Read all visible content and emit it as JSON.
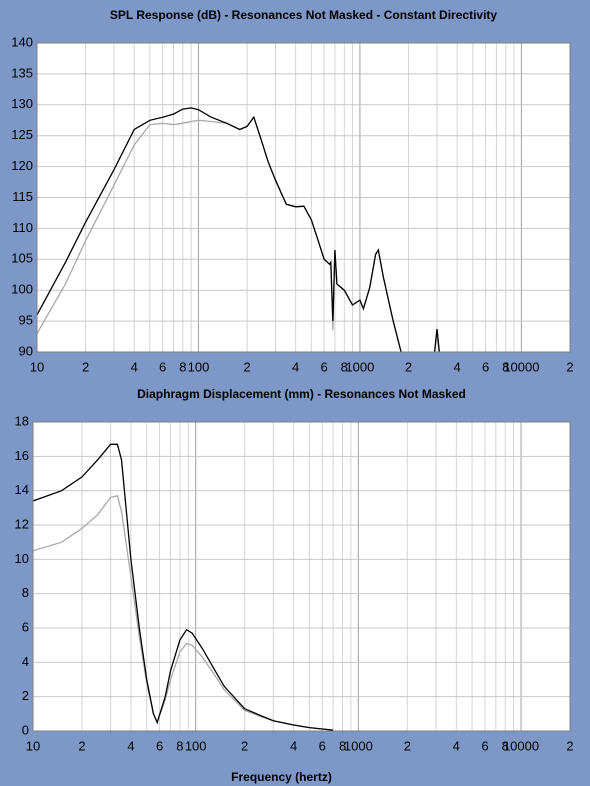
{
  "chart_data": [
    {
      "type": "line",
      "title": "SPL Response (dB) - Resonances Not Masked - Constant Directivity",
      "xscale": "log",
      "grid": true,
      "xlim": [
        10,
        20000
      ],
      "ylim": [
        90,
        140
      ],
      "xticks": [
        10,
        {
          "value": 20,
          "label": "2"
        },
        {
          "value": 30,
          "label": null
        },
        {
          "value": 40,
          "label": "4"
        },
        {
          "value": 50,
          "label": null
        },
        {
          "value": 60,
          "label": "6"
        },
        {
          "value": 70,
          "label": null
        },
        {
          "value": 80,
          "label": "8"
        },
        {
          "value": 90,
          "label": null
        },
        100,
        {
          "value": 200,
          "label": "2"
        },
        {
          "value": 300,
          "label": null
        },
        {
          "value": 400,
          "label": "4"
        },
        {
          "value": 500,
          "label": null
        },
        {
          "value": 600,
          "label": "6"
        },
        {
          "value": 700,
          "label": null
        },
        {
          "value": 800,
          "label": "8"
        },
        {
          "value": 900,
          "label": null
        },
        1000,
        {
          "value": 2000,
          "label": "2"
        },
        {
          "value": 3000,
          "label": null
        },
        {
          "value": 4000,
          "label": "4"
        },
        {
          "value": 5000,
          "label": null
        },
        {
          "value": 6000,
          "label": "6"
        },
        {
          "value": 7000,
          "label": null
        },
        {
          "value": 8000,
          "label": "8"
        },
        {
          "value": 9000,
          "label": null
        },
        10000,
        {
          "value": 20000,
          "label": "2"
        }
      ],
      "yticks": [
        90,
        95,
        100,
        105,
        110,
        115,
        120,
        125,
        130,
        135,
        140
      ],
      "x": [
        10,
        15,
        20,
        30,
        40,
        50,
        60,
        70,
        80,
        90,
        100,
        120,
        150,
        180,
        200,
        220,
        240,
        270,
        300,
        350,
        400,
        450,
        500,
        550,
        600,
        650,
        660,
        680,
        700,
        720,
        800,
        900,
        1000,
        1050,
        1150,
        1250,
        1300,
        1400,
        1600,
        1800,
        2000,
        2900,
        3000,
        3100
      ],
      "series": [
        {
          "color": "#000000",
          "values": [
            96,
            104.5,
            111,
            119.5,
            126,
            127.5,
            128,
            128.5,
            129.3,
            129.5,
            129.2,
            128,
            127,
            126,
            126.5,
            128,
            125,
            120.8,
            117.8,
            113.9,
            113.5,
            113.6,
            111.4,
            108.1,
            105,
            104.2,
            104.5,
            95,
            106.5,
            101,
            100,
            97.6,
            98.4,
            97,
            100.4,
            105.8,
            106.5,
            102,
            95.2,
            90,
            null,
            90,
            93.7,
            90
          ]
        },
        {
          "color": "#a8a8a8",
          "values": [
            93,
            101,
            108,
            117,
            123.5,
            126.8,
            127,
            126.8,
            127,
            127.3,
            127.5,
            127.3,
            127,
            126,
            126.5,
            128,
            125,
            120.8,
            117.8,
            113.9,
            113.5,
            113.6,
            111.4,
            108.1,
            105,
            104.2,
            104.5,
            93.5,
            106.5,
            101,
            100,
            97.6,
            98.4,
            97,
            100.4,
            105.8,
            106.5,
            102,
            95.2,
            90,
            null,
            90,
            93.7,
            90
          ]
        }
      ]
    },
    {
      "type": "line",
      "title": "Diaphragm Displacement (mm) - Resonances Not Masked",
      "x_label": "Frequency (hertz)",
      "xscale": "log",
      "grid": true,
      "xlim": [
        10,
        20000
      ],
      "ylim": [
        0,
        18
      ],
      "xticks": [
        10,
        {
          "value": 20,
          "label": "2"
        },
        {
          "value": 30,
          "label": null
        },
        {
          "value": 40,
          "label": "4"
        },
        {
          "value": 50,
          "label": null
        },
        {
          "value": 60,
          "label": "6"
        },
        {
          "value": 70,
          "label": null
        },
        {
          "value": 80,
          "label": "8"
        },
        {
          "value": 90,
          "label": null
        },
        100,
        {
          "value": 200,
          "label": "2"
        },
        {
          "value": 300,
          "label": null
        },
        {
          "value": 400,
          "label": "4"
        },
        {
          "value": 500,
          "label": null
        },
        {
          "value": 600,
          "label": "6"
        },
        {
          "value": 700,
          "label": null
        },
        {
          "value": 800,
          "label": "8"
        },
        {
          "value": 900,
          "label": null
        },
        1000,
        {
          "value": 2000,
          "label": "2"
        },
        {
          "value": 3000,
          "label": null
        },
        {
          "value": 4000,
          "label": "4"
        },
        {
          "value": 5000,
          "label": null
        },
        {
          "value": 6000,
          "label": "6"
        },
        {
          "value": 7000,
          "label": null
        },
        {
          "value": 8000,
          "label": "8"
        },
        {
          "value": 9000,
          "label": null
        },
        10000,
        {
          "value": 20000,
          "label": "2"
        }
      ],
      "yticks": [
        0,
        2,
        4,
        6,
        8,
        10,
        12,
        14,
        16,
        18
      ],
      "x": [
        10,
        15,
        20,
        25,
        30,
        33,
        35,
        40,
        45,
        50,
        55,
        58,
        65,
        70,
        80,
        88,
        95,
        110,
        130,
        150,
        200,
        250,
        300,
        400,
        500,
        700
      ],
      "series": [
        {
          "color": "#000000",
          "values": [
            13.4,
            14,
            14.8,
            15.8,
            16.7,
            16.7,
            15.8,
            10,
            6,
            3,
            1,
            0.5,
            2,
            3.5,
            5.3,
            5.9,
            5.7,
            4.8,
            3.6,
            2.6,
            1.3,
            0.9,
            0.6,
            0.35,
            0.2,
            0.05
          ]
        },
        {
          "color": "#a8a8a8",
          "values": [
            10.5,
            11,
            11.8,
            12.6,
            13.6,
            13.7,
            12.8,
            9,
            5.5,
            2.8,
            1,
            0.5,
            1.8,
            3,
            4.6,
            5.1,
            5,
            4.3,
            3.3,
            2.4,
            1.2,
            0.85,
            0.6,
            0.35,
            0.2,
            0.05
          ]
        }
      ]
    }
  ]
}
